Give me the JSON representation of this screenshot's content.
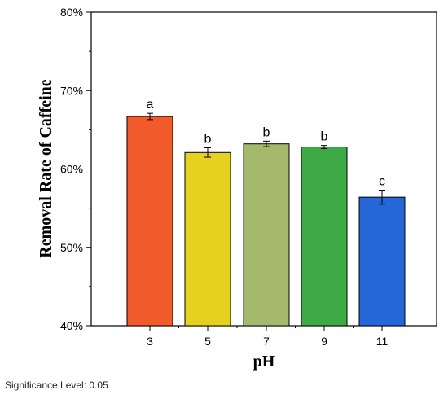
{
  "chart_data": {
    "type": "bar",
    "xlabel": "pH",
    "ylabel": "Removal Rate of Caffeine",
    "categories": [
      "3",
      "5",
      "7",
      "9",
      "11"
    ],
    "values": [
      66.7,
      62.1,
      63.2,
      62.8,
      56.4
    ],
    "errors": [
      0.4,
      0.6,
      0.35,
      0.2,
      0.9
    ],
    "significance_letters": [
      "a",
      "b",
      "b",
      "b",
      "c"
    ],
    "colors": [
      "#F15A2B",
      "#E6D21E",
      "#A4B96B",
      "#3DAA45",
      "#2566D8"
    ],
    "ylim": [
      40,
      80
    ],
    "yticks": [
      "40%",
      "50%",
      "60%",
      "70%",
      "80%"
    ],
    "grid": false
  },
  "footnote": "Significance Level: 0.05"
}
